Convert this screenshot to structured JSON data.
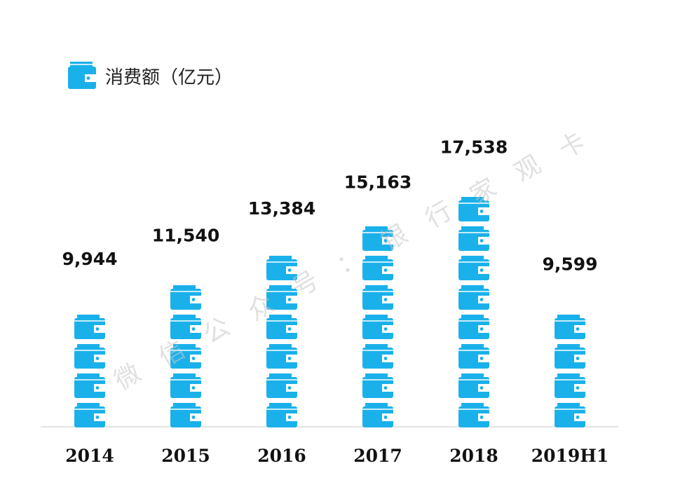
{
  "chart_data": {
    "type": "bar",
    "title": "消费额（亿元）",
    "categories": [
      "2014",
      "2015",
      "2016",
      "2017",
      "2018",
      "2019H1"
    ],
    "values": [
      9944,
      11540,
      13384,
      15163,
      17538,
      9599
    ],
    "value_labels": [
      "9,944",
      "11,540",
      "13,384",
      "15,163",
      "17,538",
      "9,599"
    ],
    "unit_per_icon": 2000,
    "grid": false,
    "legend": "none",
    "colors": {
      "bar": "#1ab1ea",
      "baseline": "#d9d9d9"
    },
    "icon": "wallet-icon"
  },
  "watermark": {
    "chars": [
      "微",
      "信",
      "公",
      "众",
      "号",
      "：",
      "银",
      "行",
      "家",
      "观",
      "卡"
    ]
  }
}
